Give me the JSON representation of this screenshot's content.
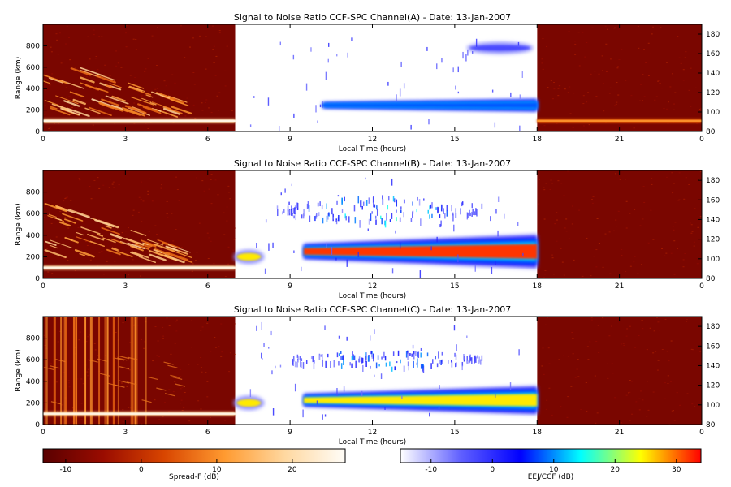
{
  "chart_data": [
    {
      "type": "heatmap",
      "title": "Signal to Noise Ratio CCF-SPC Channel(A) - Date: 13-Jan-2007",
      "xlabel": "Local Time (hours)",
      "ylabel": "Range (km)",
      "xlim": [
        0,
        24
      ],
      "x_ticks": [
        "0",
        "3",
        "6",
        "9",
        "12",
        "15",
        "18",
        "21",
        "0"
      ],
      "ylim_left": [
        0,
        1000
      ],
      "y_ticks_left": [
        0,
        200,
        400,
        600,
        800
      ],
      "ylim_right": [
        80,
        190
      ],
      "y_ticks_right": [
        80,
        100,
        120,
        140,
        160,
        180
      ],
      "night_colormap": "Spread-F (dB)",
      "day_colormap": "EEJ/CCF (dB)",
      "day_window_hours": [
        7,
        18
      ],
      "features": [
        {
          "name": "spread-F plumes",
          "time_hours": [
            0,
            5.3
          ],
          "range_km": [
            200,
            720
          ],
          "snr_db": 20
        },
        {
          "name": "bottom echo trace",
          "time_hours": [
            0,
            7
          ],
          "range_km": [
            100,
            100
          ],
          "snr_db": 25
        },
        {
          "name": "EEJ band",
          "time_hours": [
            10.2,
            18
          ],
          "range_km": [
            190,
            300
          ],
          "snr_db": 8
        },
        {
          "name": "upper blob",
          "time_hours": [
            15.5,
            17.8
          ],
          "range_km": [
            740,
            820
          ],
          "snr_db": -3
        },
        {
          "name": "night trace",
          "time_hours": [
            18,
            24
          ],
          "range_km": [
            100,
            100
          ],
          "snr_db": 10
        }
      ]
    },
    {
      "type": "heatmap",
      "title": "Signal to Noise Ratio CCF-SPC Channel(B) - Date: 13-Jan-2007",
      "xlabel": "Local Time (hours)",
      "ylabel": "Range (km)",
      "xlim": [
        0,
        24
      ],
      "x_ticks": [
        "0",
        "3",
        "6",
        "9",
        "12",
        "15",
        "18",
        "21",
        "0"
      ],
      "ylim_left": [
        0,
        1000
      ],
      "y_ticks_left": [
        0,
        200,
        400,
        600,
        800
      ],
      "ylim_right": [
        80,
        190
      ],
      "y_ticks_right": [
        80,
        100,
        120,
        140,
        160,
        180
      ],
      "night_colormap": "Spread-F (dB)",
      "day_colormap": "EEJ/CCF (dB)",
      "day_window_hours": [
        7,
        18
      ],
      "features": [
        {
          "name": "spread-F plumes",
          "time_hours": [
            0,
            5.3
          ],
          "range_km": [
            200,
            720
          ],
          "snr_db": 20
        },
        {
          "name": "bottom echo trace",
          "time_hours": [
            0,
            7
          ],
          "range_km": [
            100,
            100
          ],
          "snr_db": 25
        },
        {
          "name": "early EEJ patch",
          "time_hours": [
            7,
            8
          ],
          "range_km": [
            150,
            250
          ],
          "snr_db": 25
        },
        {
          "name": "EEJ band",
          "time_hours": [
            9.5,
            18
          ],
          "range_km": [
            100,
            400
          ],
          "snr_db": 32
        },
        {
          "name": "150 km echoes",
          "time_hours": [
            8.5,
            16
          ],
          "range_km": [
            520,
            760
          ],
          "snr_db": 18
        }
      ]
    },
    {
      "type": "heatmap",
      "title": "Signal to Noise Ratio CCF-SPC Channel(C) - Date: 13-Jan-2007",
      "xlabel": "Local Time (hours)",
      "ylabel": "Range (km)",
      "xlim": [
        0,
        24
      ],
      "x_ticks": [
        "0",
        "3",
        "6",
        "9",
        "12",
        "15",
        "18",
        "21",
        "0"
      ],
      "ylim_left": [
        0,
        1000
      ],
      "y_ticks_left": [
        0,
        200,
        400,
        600,
        800
      ],
      "ylim_right": [
        80,
        190
      ],
      "y_ticks_right": [
        80,
        100,
        120,
        140,
        160,
        180
      ],
      "night_colormap": "Spread-F (dB)",
      "day_colormap": "EEJ/CCF (dB)",
      "day_window_hours": [
        7,
        18
      ],
      "features": [
        {
          "name": "interference stripes",
          "time_hours": [
            0,
            3.8
          ],
          "range_km": [
            0,
            1000
          ],
          "snr_db": 5
        },
        {
          "name": "bottom echo trace",
          "time_hours": [
            0,
            7
          ],
          "range_km": [
            100,
            100
          ],
          "snr_db": 25
        },
        {
          "name": "early EEJ patch",
          "time_hours": [
            7,
            8
          ],
          "range_km": [
            150,
            250
          ],
          "snr_db": 25
        },
        {
          "name": "EEJ band",
          "time_hours": [
            9.5,
            18
          ],
          "range_km": [
            100,
            350
          ],
          "snr_db": 25
        },
        {
          "name": "150 km echoes",
          "time_hours": [
            9,
            16
          ],
          "range_km": [
            520,
            680
          ],
          "snr_db": 15
        }
      ]
    }
  ],
  "colorbars": [
    {
      "label": "Spread-F (dB)",
      "range": [
        -13,
        27
      ],
      "ticks": [
        "-10",
        "0",
        "10",
        "20"
      ],
      "colors": [
        "#5a0000",
        "#9a0c00",
        "#d84500",
        "#ff9a30",
        "#ffd8a0",
        "#fffdf8"
      ]
    },
    {
      "label": "EEJ/CCF (dB)",
      "range": [
        -15,
        34
      ],
      "ticks": [
        "-10",
        "0",
        "10",
        "20",
        "30"
      ],
      "colors": [
        "#ffffff",
        "#6060ff",
        "#0000ff",
        "#00ffff",
        "#ffff00",
        "#ff0000"
      ]
    }
  ]
}
